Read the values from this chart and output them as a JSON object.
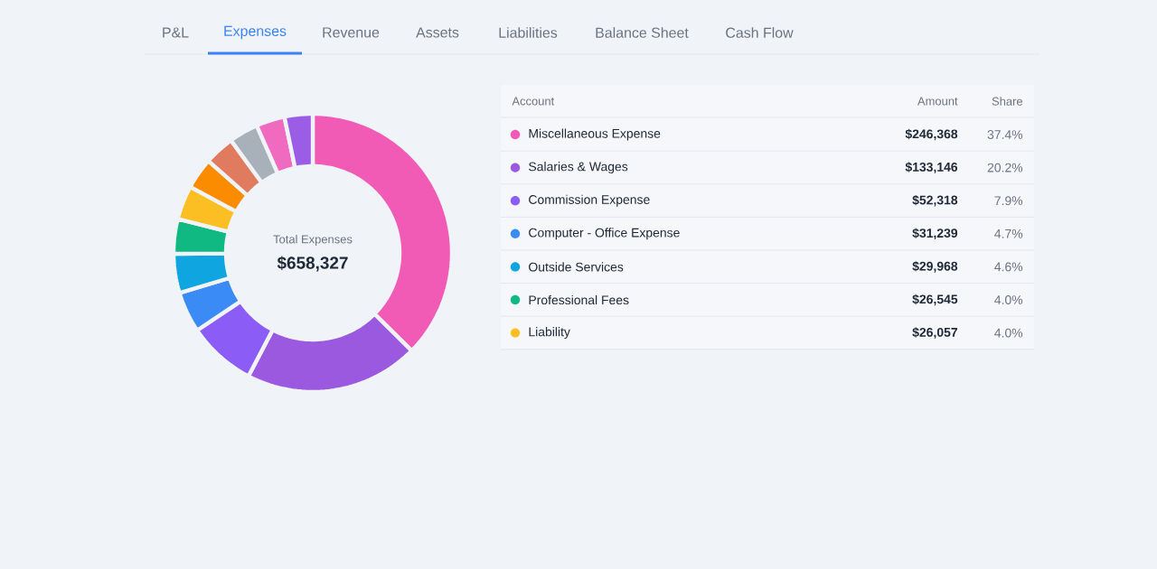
{
  "chart_data": {
    "type": "donut",
    "title": "Total Expenses",
    "subtitle": "$658,327",
    "categories": [
      "Miscellaneous Expense",
      "Salaries & Wages",
      "Commission Expense",
      "Computer - Office Expense",
      "Outside Services",
      "Professional Fees",
      "Liability",
      null,
      null,
      null,
      null,
      null
    ],
    "values": [
      246368,
      133146,
      52318,
      31239,
      29968,
      26545,
      26057,
      23800,
      23100,
      22400,
      21900,
      21500
    ],
    "value_labels": [
      "$246,368",
      "$133,146",
      "$52,318",
      "$31,239",
      "$29,968",
      "$26,545",
      "$26,057",
      null,
      null,
      null,
      null,
      null
    ],
    "colors": [
      "#f25bb5",
      "#9b59e0",
      "#8b5cf6",
      "#3b8bf7",
      "#0ea5e0",
      "#10b981",
      "#fbbf24",
      "#fb8c00",
      "#e07b5f",
      "#a8b0ba",
      "#f06bc0",
      "#9b5de5"
    ],
    "legend": "right",
    "annotations": [
      "P&L",
      "Expenses",
      "Revenue",
      "Assets",
      "Liabilities",
      "Balance Sheet",
      "Cash Flow",
      "Account",
      "Amount",
      "Share",
      "37.4%",
      "20.2%",
      "7.9%",
      "4.7%",
      "4.6%",
      "4.0%",
      "4.0%"
    ]
  }
}
